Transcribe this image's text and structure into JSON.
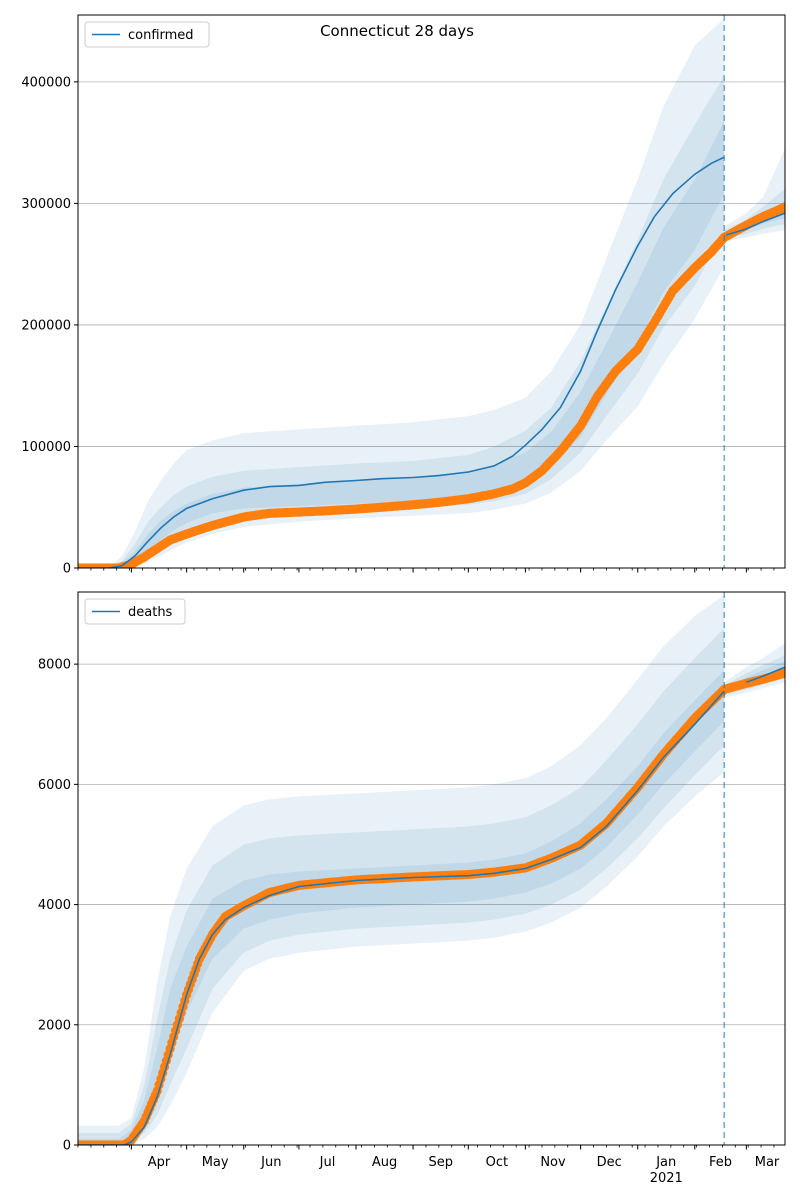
{
  "figure": {
    "suptitle": "Connecticut 28 days"
  },
  "colors": {
    "model": "#1f77b4",
    "observed": "#ff7f0e",
    "band": "#1f77b4",
    "cutoff": "#1f77b4",
    "grid": "#b0b0b0"
  },
  "chart_data": [
    {
      "type": "line",
      "id": "confirmed",
      "legend": [
        "confirmed"
      ],
      "legend_position": "top-left",
      "grid": "y",
      "xlim": [
        "2020-03-03",
        "2021-03-22"
      ],
      "ylim": [
        0,
        455000
      ],
      "yticks": [
        0,
        100000,
        200000,
        300000,
        400000
      ],
      "cutoff_date": "2021-02-17",
      "series": [
        {
          "name": "confirmed",
          "kind": "model-median",
          "x": [
            "2020-03-03",
            "2020-03-20",
            "2020-03-27",
            "2020-04-03",
            "2020-04-10",
            "2020-04-17",
            "2020-04-24",
            "2020-05-01",
            "2020-05-15",
            "2020-06-01",
            "2020-06-15",
            "2020-07-01",
            "2020-07-15",
            "2020-08-01",
            "2020-08-15",
            "2020-09-01",
            "2020-09-15",
            "2020-10-01",
            "2020-10-15",
            "2020-10-25",
            "2020-11-01",
            "2020-11-10",
            "2020-11-20",
            "2020-12-01",
            "2020-12-10",
            "2020-12-20",
            "2021-01-01",
            "2021-01-10",
            "2021-01-20",
            "2021-02-01",
            "2021-02-10",
            "2021-02-17",
            "2021-02-18",
            "2021-03-01",
            "2021-03-10",
            "2021-03-22"
          ],
          "y": [
            0,
            0,
            2000,
            10000,
            22000,
            33000,
            42000,
            49000,
            57000,
            64000,
            67000,
            68000,
            70500,
            72000,
            73500,
            74500,
            76000,
            79000,
            84000,
            92000,
            101000,
            114000,
            132000,
            162000,
            195000,
            229000,
            265000,
            289000,
            308000,
            324000,
            333000,
            338000,
            274000,
            279000,
            285000,
            292000
          ]
        },
        {
          "name": "",
          "kind": "observed",
          "x": [
            "2020-03-03",
            "2020-03-25",
            "2020-04-01",
            "2020-04-08",
            "2020-04-15",
            "2020-04-22",
            "2020-05-01",
            "2020-05-15",
            "2020-06-01",
            "2020-06-15",
            "2020-07-01",
            "2020-07-15",
            "2020-08-01",
            "2020-08-15",
            "2020-09-01",
            "2020-09-15",
            "2020-10-01",
            "2020-10-15",
            "2020-10-25",
            "2020-11-01",
            "2020-11-10",
            "2020-11-20",
            "2020-12-01",
            "2020-12-10",
            "2020-12-20",
            "2021-01-01",
            "2021-01-10",
            "2021-01-20",
            "2021-02-01",
            "2021-02-10",
            "2021-02-17",
            "2021-03-01",
            "2021-03-10",
            "2021-03-22"
          ],
          "y": [
            0,
            0,
            3000,
            9000,
            16000,
            23000,
            28000,
            35000,
            42000,
            45000,
            46000,
            47000,
            48500,
            50000,
            52000,
            54000,
            57000,
            61000,
            65000,
            70000,
            80000,
            96000,
            117000,
            141000,
            162000,
            180000,
            202000,
            228000,
            247000,
            260000,
            272000,
            282000,
            289000,
            297000
          ]
        }
      ],
      "bands": {
        "x": [
          "2020-03-03",
          "2020-03-20",
          "2020-03-27",
          "2020-04-03",
          "2020-04-10",
          "2020-04-17",
          "2020-04-24",
          "2020-05-01",
          "2020-05-15",
          "2020-06-01",
          "2020-07-01",
          "2020-08-01",
          "2020-09-01",
          "2020-10-01",
          "2020-10-15",
          "2020-11-01",
          "2020-11-15",
          "2020-12-01",
          "2020-12-15",
          "2021-01-01",
          "2021-01-15",
          "2021-02-01",
          "2021-02-17"
        ],
        "outer_hi": [
          0,
          1000,
          10000,
          30000,
          55000,
          72000,
          86000,
          97000,
          105000,
          111000,
          114000,
          117000,
          120000,
          125000,
          130000,
          140000,
          162000,
          200000,
          255000,
          320000,
          380000,
          430000,
          452000
        ],
        "mid_hi": [
          0,
          600,
          6000,
          20000,
          38000,
          50000,
          60000,
          67000,
          75000,
          80000,
          83000,
          86000,
          88000,
          93000,
          100000,
          113000,
          132000,
          170000,
          215000,
          270000,
          320000,
          365000,
          405000
        ],
        "inner_hi": [
          0,
          300,
          4000,
          14000,
          28000,
          39000,
          47000,
          53000,
          61000,
          66000,
          69000,
          72500,
          75000,
          79000,
          85000,
          95000,
          112000,
          145000,
          185000,
          235000,
          280000,
          320000,
          368000
        ],
        "inner_lo": [
          0,
          100,
          1500,
          6000,
          14000,
          23000,
          31000,
          37000,
          45000,
          49000,
          51000,
          53000,
          55000,
          57500,
          62000,
          69000,
          83000,
          108000,
          143000,
          185000,
          227000,
          262000,
          308000
        ],
        "mid_lo": [
          0,
          0,
          800,
          3500,
          9000,
          16000,
          23000,
          29000,
          37000,
          42000,
          45000,
          47000,
          49000,
          52000,
          55000,
          61000,
          73000,
          95000,
          125000,
          160000,
          198000,
          232000,
          278000
        ],
        "outer_lo": [
          0,
          0,
          300,
          2000,
          5000,
          10000,
          16000,
          21000,
          28000,
          34000,
          38000,
          41000,
          43000,
          45000,
          48000,
          53000,
          62000,
          80000,
          105000,
          133000,
          168000,
          205000,
          248000
        ],
        "post_x": [
          "2021-02-17",
          "2021-03-01",
          "2021-03-10",
          "2021-03-22"
        ],
        "post_outer_hi": [
          281000,
          292000,
          305000,
          345000
        ],
        "post_mid_hi": [
          278000,
          287000,
          297000,
          312000
        ],
        "post_inner_hi": [
          275000,
          283000,
          291000,
          302000
        ],
        "post_inner_lo": [
          273000,
          278000,
          283000,
          288000
        ],
        "post_mid_lo": [
          271000,
          275000,
          279000,
          283000
        ],
        "post_outer_lo": [
          269000,
          272000,
          275000,
          278000
        ]
      }
    },
    {
      "type": "line",
      "id": "deaths",
      "legend": [
        "deaths"
      ],
      "legend_position": "top-left",
      "grid": "y",
      "xlim": [
        "2020-03-03",
        "2021-03-22"
      ],
      "ylim": [
        0,
        9200
      ],
      "yticks": [
        0,
        2000,
        4000,
        6000,
        8000
      ],
      "cutoff_date": "2021-02-17",
      "xticks": [
        "2020-04-01",
        "2020-05-01",
        "2020-06-01",
        "2020-07-01",
        "2020-08-01",
        "2020-09-01",
        "2020-10-01",
        "2020-11-01",
        "2020-12-01",
        "2021-01-01",
        "2021-02-01",
        "2021-03-01"
      ],
      "xtick_labels": [
        "Apr",
        "May",
        "Jun",
        "Jul",
        "Aug",
        "Sep",
        "Oct",
        "Nov",
        "Dec",
        "Jan",
        "Feb",
        "Mar"
      ],
      "year_label": "2021",
      "series": [
        {
          "name": "deaths",
          "kind": "model-median",
          "x": [
            "2020-03-03",
            "2020-03-28",
            "2020-04-01",
            "2020-04-08",
            "2020-04-15",
            "2020-04-22",
            "2020-05-01",
            "2020-05-08",
            "2020-05-15",
            "2020-05-22",
            "2020-06-01",
            "2020-06-15",
            "2020-07-01",
            "2020-08-01",
            "2020-09-01",
            "2020-10-01",
            "2020-10-15",
            "2020-11-01",
            "2020-11-15",
            "2020-12-01",
            "2020-12-15",
            "2021-01-01",
            "2021-01-15",
            "2021-02-01",
            "2021-02-17",
            "2021-03-01",
            "2021-03-10",
            "2021-03-22"
          ],
          "y": [
            0,
            0,
            50,
            300,
            800,
            1500,
            2500,
            3100,
            3500,
            3750,
            3950,
            4150,
            4300,
            4400,
            4450,
            4480,
            4520,
            4600,
            4750,
            4950,
            5300,
            5900,
            6450,
            7000,
            7550,
            7700,
            7800,
            7950
          ]
        },
        {
          "name": "",
          "kind": "observed",
          "x": [
            "2020-03-03",
            "2020-03-28",
            "2020-04-01",
            "2020-04-08",
            "2020-04-15",
            "2020-04-22",
            "2020-05-01",
            "2020-05-08",
            "2020-05-15",
            "2020-05-22",
            "2020-06-01",
            "2020-06-15",
            "2020-07-01",
            "2020-08-01",
            "2020-09-01",
            "2020-10-01",
            "2020-10-15",
            "2020-11-01",
            "2020-11-15",
            "2020-12-01",
            "2020-12-15",
            "2021-01-01",
            "2021-01-15",
            "2021-02-01",
            "2021-02-17",
            "2021-03-01",
            "2021-03-10",
            "2021-03-22"
          ],
          "y": [
            0,
            0,
            80,
            400,
            900,
            1600,
            2500,
            3100,
            3500,
            3800,
            3980,
            4200,
            4320,
            4410,
            4460,
            4500,
            4540,
            4610,
            4770,
            4990,
            5350,
            5950,
            6500,
            7100,
            7580,
            7680,
            7750,
            7850
          ]
        }
      ],
      "bands": {
        "x": [
          "2020-03-03",
          "2020-03-25",
          "2020-04-01",
          "2020-04-08",
          "2020-04-15",
          "2020-04-22",
          "2020-05-01",
          "2020-05-15",
          "2020-06-01",
          "2020-06-15",
          "2020-07-01",
          "2020-08-01",
          "2020-09-01",
          "2020-10-01",
          "2020-10-15",
          "2020-11-01",
          "2020-11-15",
          "2020-12-01",
          "2020-12-15",
          "2021-01-01",
          "2021-01-15",
          "2021-02-01",
          "2021-02-17"
        ],
        "outer_hi": [
          320,
          320,
          450,
          1300,
          2700,
          3800,
          4600,
          5300,
          5650,
          5750,
          5800,
          5850,
          5900,
          5950,
          6000,
          6100,
          6300,
          6650,
          7100,
          7750,
          8300,
          8800,
          9150
        ],
        "mid_hi": [
          200,
          200,
          350,
          1000,
          2100,
          3100,
          3900,
          4650,
          5000,
          5100,
          5150,
          5200,
          5250,
          5300,
          5350,
          5450,
          5650,
          5950,
          6400,
          7000,
          7550,
          8100,
          8600
        ],
        "inner_hi": [
          100,
          100,
          250,
          750,
          1600,
          2600,
          3300,
          4100,
          4400,
          4500,
          4550,
          4600,
          4650,
          4700,
          4750,
          4850,
          5050,
          5350,
          5750,
          6300,
          6850,
          7400,
          7900
        ],
        "inner_lo": [
          0,
          0,
          100,
          350,
          800,
          1500,
          2200,
          3100,
          3600,
          3750,
          3850,
          3950,
          4000,
          4050,
          4100,
          4200,
          4350,
          4600,
          4950,
          5500,
          6000,
          6550,
          7050
        ],
        "mid_lo": [
          0,
          0,
          50,
          200,
          500,
          1000,
          1600,
          2600,
          3200,
          3400,
          3500,
          3600,
          3650,
          3700,
          3750,
          3850,
          4000,
          4250,
          4600,
          5100,
          5600,
          6150,
          6650
        ],
        "outer_lo": [
          0,
          0,
          20,
          100,
          300,
          650,
          1200,
          2200,
          2900,
          3100,
          3200,
          3300,
          3350,
          3400,
          3450,
          3550,
          3700,
          3950,
          4300,
          4800,
          5300,
          5800,
          6200
        ],
        "post_x": [
          "2021-02-17",
          "2021-03-01",
          "2021-03-10",
          "2021-03-22"
        ],
        "post_outer_hi": [
          7700,
          7950,
          8100,
          8350
        ],
        "post_mid_hi": [
          7650,
          7850,
          7980,
          8150
        ],
        "post_inner_hi": [
          7600,
          7780,
          7900,
          8050
        ],
        "post_inner_lo": [
          7520,
          7640,
          7730,
          7860
        ],
        "post_mid_lo": [
          7480,
          7580,
          7660,
          7780
        ],
        "post_outer_lo": [
          7440,
          7530,
          7600,
          7700
        ]
      }
    }
  ]
}
